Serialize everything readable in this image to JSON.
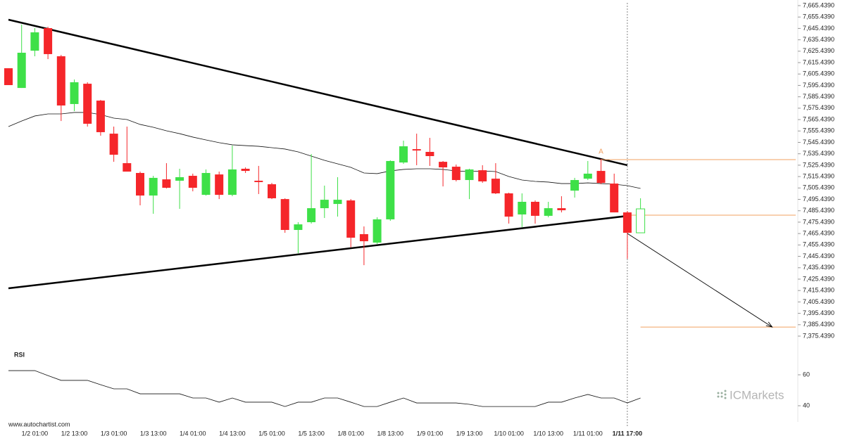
{
  "chart_data": {
    "type": "candlestick",
    "categories": [
      null,
      null,
      "1/2 01:00",
      null,
      null,
      "1/2 13:00",
      null,
      null,
      "1/3 01:00",
      null,
      null,
      "1/3 13:00",
      null,
      null,
      "1/4 01:00",
      null,
      null,
      "1/4 13:00",
      null,
      null,
      "1/5 01:00",
      null,
      null,
      "1/5 13:00",
      null,
      null,
      "1/8 01:00",
      null,
      null,
      "1/8 13:00",
      null,
      null,
      "1/9 01:00",
      null,
      null,
      "1/9 13:00",
      null,
      null,
      "1/10 01:00",
      null,
      null,
      "1/10 13:00",
      null,
      null,
      "1/11 01:00",
      null,
      null,
      "1/11 17:00",
      null
    ],
    "open": [
      7610.5,
      7593.2,
      7625.9,
      7645.7,
      7621.0,
      7579.1,
      7596.9,
      7582.1,
      7553.1,
      7527.2,
      7518.6,
      7498.8,
      7513.0,
      7511.8,
      7516.1,
      7499.4,
      7517.3,
      7499.4,
      7522.3,
      7511.8,
      7508.7,
      7495.7,
      7468.6,
      7475.4,
      7487.7,
      7491.4,
      7494.5,
      7464.9,
      7457.5,
      7477.9,
      7527.8,
      7539.5,
      7537.1,
      7528.4,
      7524.1,
      7512.4,
      7521.0,
      7513.6,
      7500.7,
      7482.2,
      7493.3,
      7481.0,
      7487.7,
      7503.1,
      7513.6,
      7520.4,
      7509.3,
      7484.0,
      7466.1
    ],
    "high": [
      7610.5,
      7648.8,
      7645.7,
      7646.9,
      7622.2,
      7600.6,
      7598.2,
      7582.7,
      7559.3,
      7559.3,
      7519.8,
      7516.1,
      7527.2,
      7522.3,
      7518.0,
      7521.7,
      7519.8,
      7542.6,
      7523.5,
      7524.8,
      7509.9,
      7496.4,
      7475.4,
      7535.2,
      7507.5,
      7514.9,
      7495.7,
      7471.7,
      7479.7,
      7529.7,
      7547.0,
      7553.1,
      7549.4,
      7529.1,
      7526.0,
      7522.3,
      7525.4,
      7527.2,
      7501.3,
      7500.7,
      7494.5,
      7493.3,
      7498.2,
      7514.3,
      7529.1,
      7530.9,
      7518.0,
      7485.3,
      7496.4
    ],
    "low": [
      7595.7,
      7593.2,
      7621.0,
      7618.5,
      7564.2,
      7572.9,
      7559.3,
      7551.3,
      7528.4,
      7519.8,
      7490.2,
      7482.8,
      7505.0,
      7487.1,
      7502.5,
      7498.8,
      7495.7,
      7498.2,
      7518.6,
      7500.1,
      7495.7,
      7466.1,
      7448.2,
      7474.2,
      7479.1,
      7480.3,
      7453.2,
      7437.7,
      7456.3,
      7476.6,
      7526.6,
      7525.4,
      7524.8,
      7506.8,
      7511.2,
      7495.7,
      7509.9,
      7500.1,
      7474.2,
      7471.1,
      7474.2,
      7479.7,
      7484.0,
      7497.0,
      7512.4,
      7508.7,
      7484.0,
      7443.3,
      7466.1
    ],
    "close": [
      7595.7,
      7624.1,
      7642.0,
      7622.9,
      7577.8,
      7598.2,
      7561.8,
      7554.4,
      7534.6,
      7519.8,
      7498.8,
      7514.3,
      7505.6,
      7514.9,
      7505.6,
      7518.6,
      7499.4,
      7521.7,
      7520.4,
      7510.6,
      7496.4,
      7468.6,
      7473.5,
      7487.7,
      7495.1,
      7495.1,
      7461.8,
      7458.7,
      7477.9,
      7529.1,
      7542.0,
      7538.3,
      7533.4,
      7523.5,
      7512.4,
      7521.7,
      7511.2,
      7500.7,
      7480.3,
      7493.3,
      7481.0,
      7487.7,
      7485.9,
      7512.4,
      7518.0,
      7509.9,
      7484.0,
      7466.1,
      7487.1
    ],
    "up_color": "#3ee048",
    "down_color": "#f5262a",
    "moving_average": [
      7559.3,
      7564.2,
      7568.6,
      7570.4,
      7570.4,
      7571.7,
      7571.7,
      7569.8,
      7566.7,
      7565.5,
      7561.2,
      7558.7,
      7555.6,
      7553.1,
      7550.1,
      7547.6,
      7545.2,
      7543.3,
      7542.6,
      7542.0,
      7540.8,
      7539.6,
      7537.1,
      7533.4,
      7529.7,
      7526.6,
      7523.5,
      7518.6,
      7518.0,
      7520.4,
      7521.7,
      7522.3,
      7522.3,
      7521.7,
      7520.4,
      7519.8,
      7520.4,
      7519.8,
      7515.5,
      7512.4,
      7511.2,
      7510.6,
      7509.3,
      7509.3,
      7509.9,
      7509.3,
      7508.7,
      7507.5,
      7505.0
    ],
    "trendlines": [
      {
        "x": [
          0,
          47
        ],
        "values": [
          7653.1,
          7525.4
        ]
      },
      {
        "x": [
          0,
          47
        ],
        "values": [
          7417.4,
          7480.9
        ]
      }
    ],
    "levels": [
      {
        "x": 45,
        "value": 7530.3
      },
      {
        "x": 47,
        "value": 7481.6
      },
      {
        "x": 48,
        "value": 7383.4
      }
    ],
    "level_color": "#f0a060",
    "annotations": [
      {
        "text": "A",
        "x": 45,
        "value": 7533.4
      }
    ],
    "forecast": {
      "x": [
        47,
        58
      ],
      "values": [
        7465.5,
        7383.4
      ]
    },
    "current": 47,
    "ylim": [
      7375.439,
      7665.439
    ],
    "yticks": [
      {
        "value": 7375.439,
        "label": "7,375.4390"
      },
      {
        "value": 7385.439,
        "label": "7,385.4390"
      },
      {
        "value": 7395.439,
        "label": "7,395.4390"
      },
      {
        "value": 7405.439,
        "label": "7,405.4390"
      },
      {
        "value": 7415.439,
        "label": "7,415.4390"
      },
      {
        "value": 7425.439,
        "label": "7,425.4390"
      },
      {
        "value": 7435.439,
        "label": "7,435.4390"
      },
      {
        "value": 7445.439,
        "label": "7,445.4390"
      },
      {
        "value": 7455.439,
        "label": "7,455.4390"
      },
      {
        "value": 7465.439,
        "label": "7,465.4390"
      },
      {
        "value": 7475.439,
        "label": "7,475.4390"
      },
      {
        "value": 7485.439,
        "label": "7,485.4390"
      },
      {
        "value": 7495.439,
        "label": "7,495.4390"
      },
      {
        "value": 7505.439,
        "label": "7,505.4390"
      },
      {
        "value": 7515.439,
        "label": "7,515.4390"
      },
      {
        "value": 7525.439,
        "label": "7,525.4390"
      },
      {
        "value": 7535.439,
        "label": "7,535.4390"
      },
      {
        "value": 7545.439,
        "label": "7,545.4390"
      },
      {
        "value": 7555.439,
        "label": "7,555.4390"
      },
      {
        "value": 7565.439,
        "label": "7,565.4390"
      },
      {
        "value": 7575.439,
        "label": "7,575.4390"
      },
      {
        "value": 7585.439,
        "label": "7,585.4390"
      },
      {
        "value": 7595.439,
        "label": "7,595.4390"
      },
      {
        "value": 7605.439,
        "label": "7,605.4390"
      },
      {
        "value": 7615.439,
        "label": "7,615.4390"
      },
      {
        "value": 7625.439,
        "label": "7,625.4390"
      },
      {
        "value": 7635.439,
        "label": "7,635.4390"
      },
      {
        "value": 7645.439,
        "label": "7,645.4390"
      },
      {
        "value": 7655.439,
        "label": "7,655.4390"
      },
      {
        "value": 7665.439,
        "label": "7,665.4390"
      }
    ],
    "rsi": {
      "label": "RSI",
      "values": [
        62.7,
        62.7,
        62.7,
        59.5,
        56.4,
        56.4,
        56.4,
        53.6,
        50.9,
        50.9,
        47.7,
        47.7,
        47.7,
        47.7,
        45.0,
        45.0,
        42.3,
        45.0,
        42.3,
        42.3,
        42.3,
        39.5,
        42.3,
        42.3,
        45.0,
        45.0,
        42.3,
        39.5,
        39.5,
        42.3,
        45.0,
        41.8,
        41.8,
        41.8,
        41.8,
        40.9,
        39.5,
        39.5,
        39.5,
        39.5,
        39.5,
        42.3,
        42.3,
        45.0,
        47.3,
        45.0,
        45.0,
        41.8,
        45.0
      ],
      "ylim": [
        30,
        70
      ],
      "yticks": [
        40,
        60
      ]
    },
    "watermark": "www.autochartist.com",
    "brand": "ICMarkets"
  }
}
